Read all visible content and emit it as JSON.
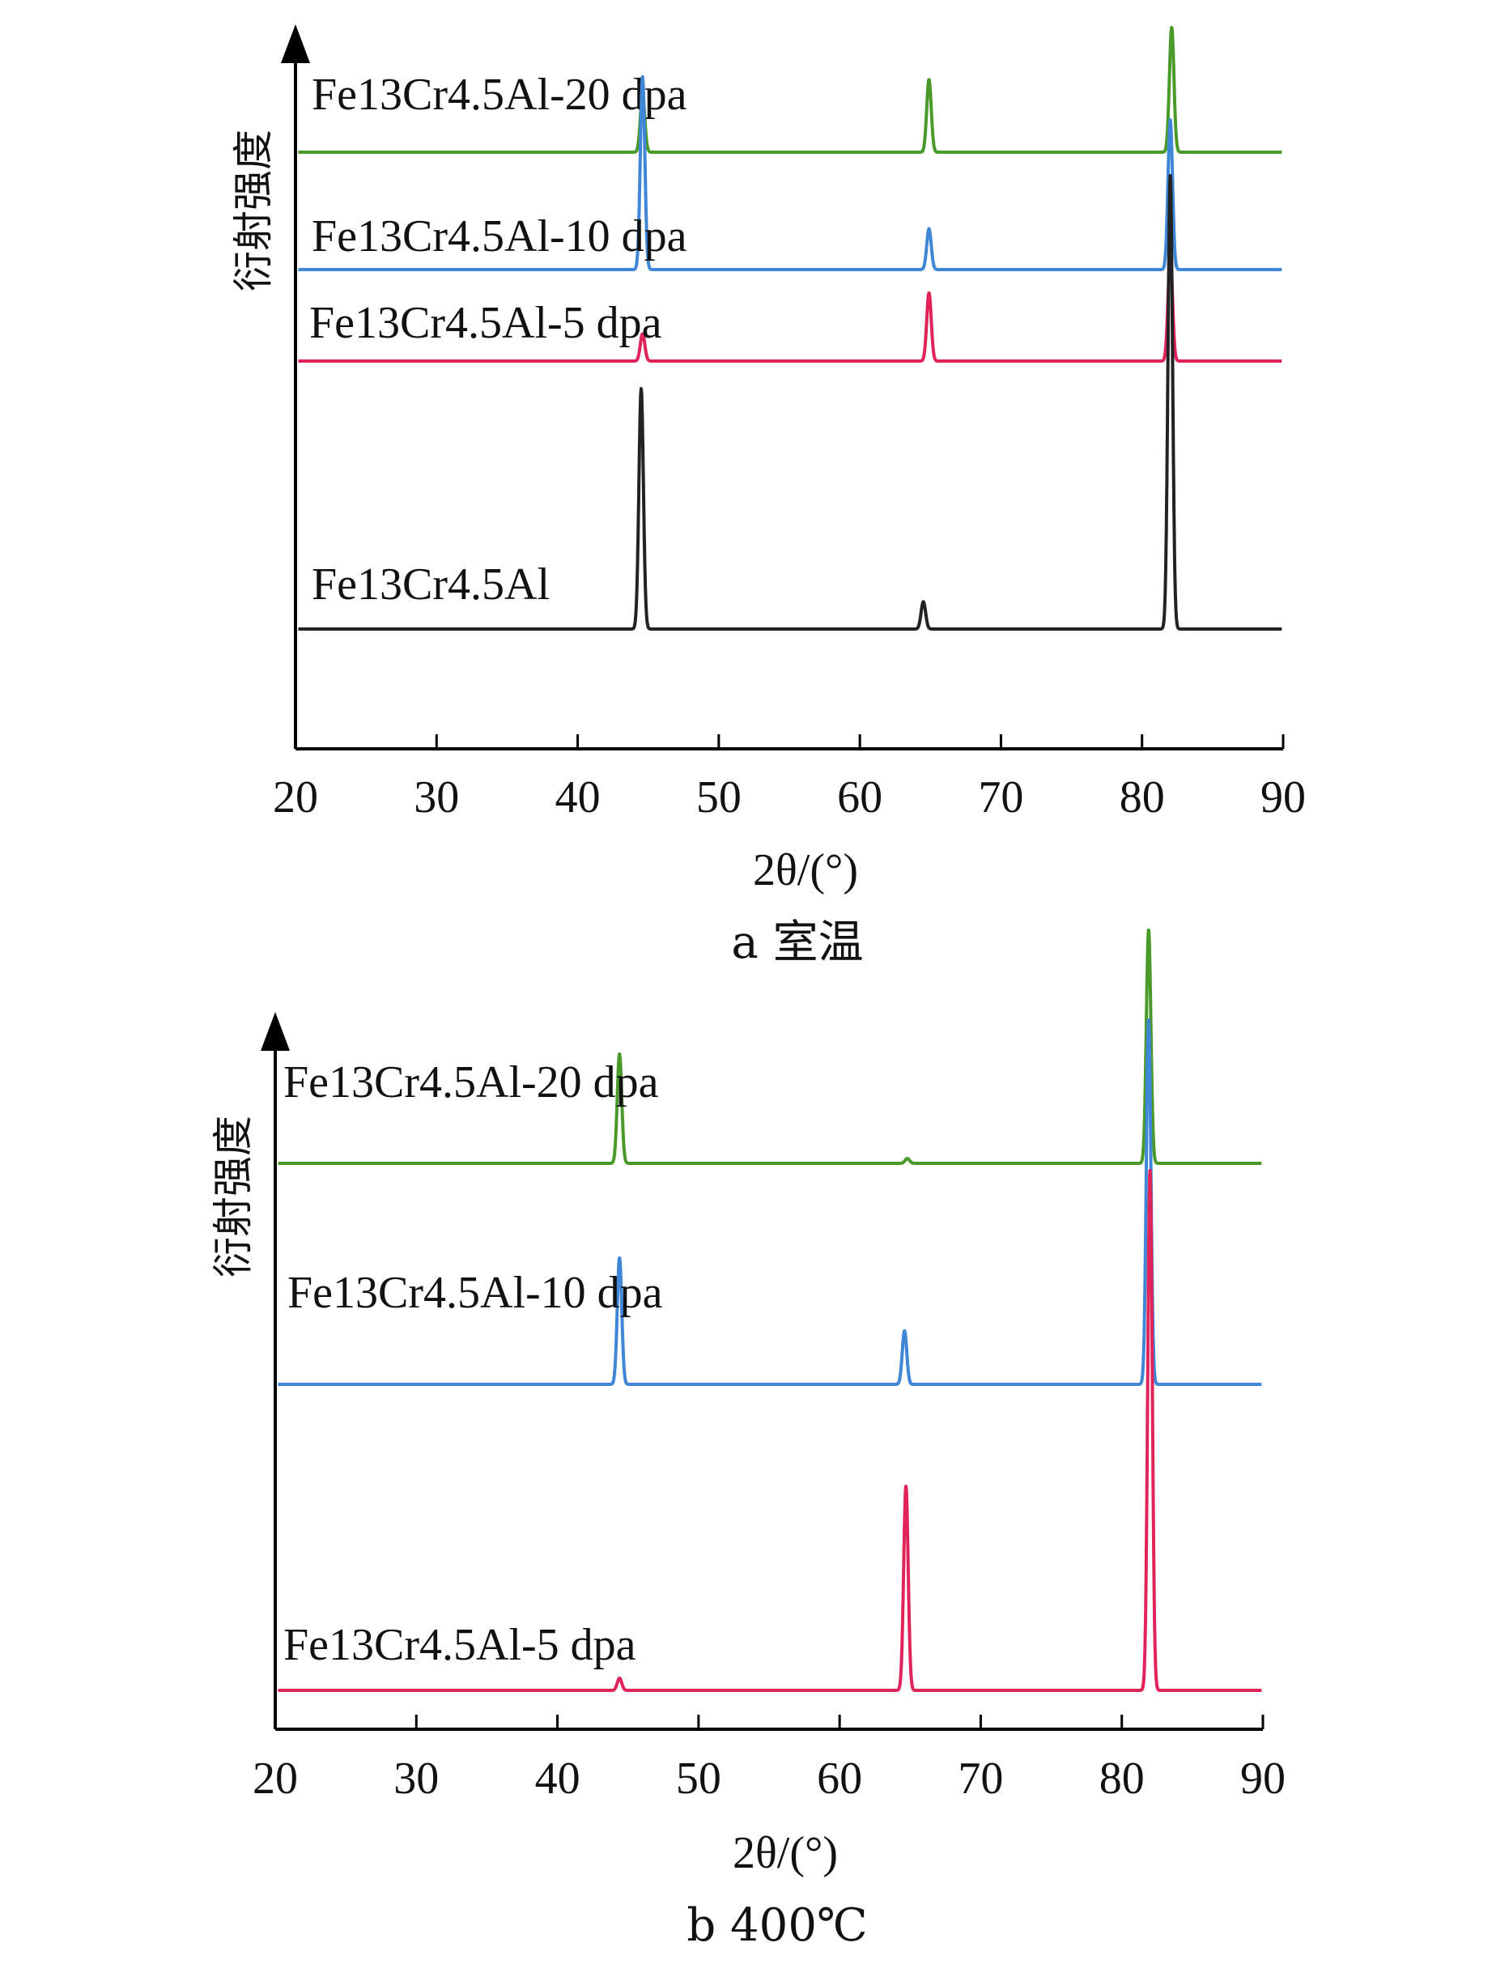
{
  "chart_data": [
    {
      "type": "line",
      "caption": "a 室温",
      "xlabel": "2θ/(°)",
      "ylabel": "衍射强度",
      "xlim": [
        20,
        90
      ],
      "xticks": [
        "20",
        "30",
        "40",
        "50",
        "60",
        "70",
        "80",
        "90"
      ],
      "yticks": "none",
      "grid": false,
      "series": [
        {
          "name": "Fe13Cr4.5Al-20 dpa",
          "color": "#4a9a2a",
          "peaks": [
            {
              "x": 44.6,
              "height": 0.25
            },
            {
              "x": 64.9,
              "height": 0.32
            },
            {
              "x": 82.1,
              "height": 0.55
            }
          ]
        },
        {
          "name": "Fe13Cr4.5Al-10 dpa",
          "color": "#3f86d6",
          "peaks": [
            {
              "x": 44.6,
              "height": 0.85
            },
            {
              "x": 64.9,
              "height": 0.18
            },
            {
              "x": 82.0,
              "height": 0.66
            }
          ]
        },
        {
          "name": "Fe13Cr4.5Al-5 dpa",
          "color": "#e0245a",
          "peaks": [
            {
              "x": 44.6,
              "height": 0.12
            },
            {
              "x": 64.9,
              "height": 0.3
            },
            {
              "x": 82.0,
              "height": 0.46
            }
          ]
        },
        {
          "name": "Fe13Cr4.5Al",
          "color": "#222222",
          "peaks": [
            {
              "x": 44.5,
              "height": 1.06
            },
            {
              "x": 64.5,
              "height": 0.12
            },
            {
              "x": 82.0,
              "height": 2.0
            }
          ]
        }
      ]
    },
    {
      "type": "line",
      "caption": "b 400℃",
      "xlabel": "2θ/(°)",
      "ylabel": "衍射强度",
      "xlim": [
        20,
        90
      ],
      "xticks": [
        "20",
        "30",
        "40",
        "50",
        "60",
        "70",
        "80",
        "90"
      ],
      "yticks": "none",
      "grid": false,
      "series": [
        {
          "name": "Fe13Cr4.5Al-20 dpa",
          "color": "#4a9a2a",
          "peaks": [
            {
              "x": 44.4,
              "height": 0.45
            },
            {
              "x": 64.8,
              "height": 0.02
            },
            {
              "x": 81.9,
              "height": 0.96
            }
          ]
        },
        {
          "name": "Fe13Cr4.5Al-10 dpa",
          "color": "#3f86d6",
          "peaks": [
            {
              "x": 44.4,
              "height": 0.52
            },
            {
              "x": 64.6,
              "height": 0.22
            },
            {
              "x": 81.9,
              "height": 1.5
            }
          ]
        },
        {
          "name": "Fe13Cr4.5Al-5 dpa",
          "color": "#e0245a",
          "peaks": [
            {
              "x": 44.4,
              "height": 0.05
            },
            {
              "x": 64.7,
              "height": 0.84
            },
            {
              "x": 82.0,
              "height": 2.14
            }
          ]
        }
      ]
    }
  ]
}
